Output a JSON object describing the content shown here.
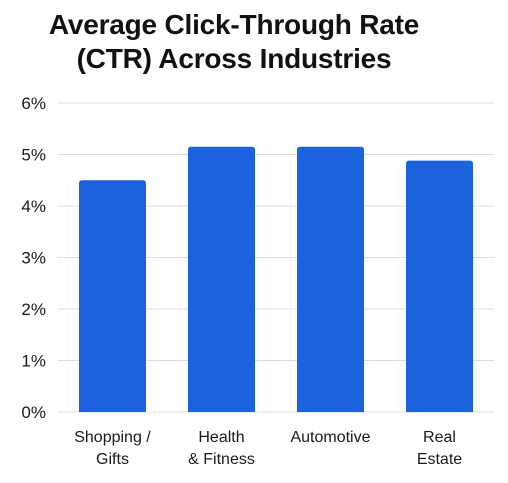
{
  "chart_data": {
    "type": "bar",
    "title_lines": [
      "Average Click-Through Rate",
      "(CTR) Across Industries"
    ],
    "title": "Average Click-Through Rate (CTR) Across Industries",
    "xlabel": "",
    "ylabel": "",
    "categories": [
      "Shopping / Gifts",
      "Health & Fitness",
      "Automotive",
      "Real Estate"
    ],
    "category_label_lines": [
      [
        "Shopping /",
        "Gifts"
      ],
      [
        "Health",
        "& Fitness"
      ],
      [
        "Automotive"
      ],
      [
        "Real",
        "Estate"
      ]
    ],
    "values": [
      4.5,
      5.15,
      5.15,
      4.88
    ],
    "unit": "%",
    "ylim": [
      0,
      6
    ],
    "yticks": [
      0,
      1,
      2,
      3,
      4,
      5,
      6
    ],
    "ytick_labels": [
      "0%",
      "1%",
      "2%",
      "3%",
      "4%",
      "5%",
      "6%"
    ],
    "grid": true,
    "bar_color": "#1a63dc",
    "grid_color": "#dcdcdc",
    "legend": "none"
  }
}
